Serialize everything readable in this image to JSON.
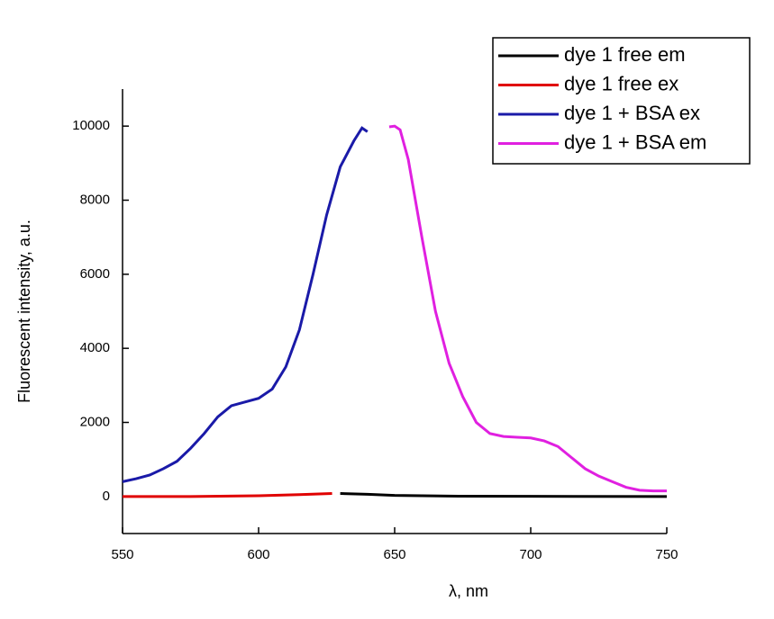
{
  "chart_data": {
    "type": "line",
    "x_label": "λ, nm",
    "y_label": "Fluorescent intensity, a.u.",
    "xlim": [
      550,
      750
    ],
    "xticks": [
      550,
      600,
      650,
      700,
      750
    ],
    "ylim": [
      -1000,
      11000
    ],
    "yticks": [
      0,
      2000,
      4000,
      6000,
      8000,
      10000
    ],
    "series": [
      {
        "name": "dye 1 free em",
        "color": "#000000",
        "x": [
          630,
          640,
          650,
          670,
          700,
          750
        ],
        "values": [
          80,
          60,
          30,
          10,
          5,
          0
        ]
      },
      {
        "name": "dye 1 free ex",
        "color": "#e00000",
        "x": [
          550,
          575,
          600,
          615,
          627
        ],
        "values": [
          0,
          0,
          20,
          50,
          80
        ]
      },
      {
        "name": "dye 1 + BSA ex",
        "color": "#1a1aa8",
        "x": [
          550,
          555,
          560,
          565,
          570,
          575,
          580,
          585,
          590,
          595,
          600,
          605,
          610,
          615,
          620,
          625,
          630,
          635,
          638,
          640
        ],
        "values": [
          400,
          480,
          580,
          750,
          950,
          1300,
          1700,
          2150,
          2450,
          2550,
          2650,
          2900,
          3500,
          4500,
          6000,
          7600,
          8900,
          9600,
          9950,
          9850
        ]
      },
      {
        "name": "dye 1 + BSA em",
        "color": "#e020e0",
        "x": [
          648,
          650,
          652,
          655,
          660,
          665,
          670,
          675,
          680,
          685,
          690,
          695,
          700,
          705,
          710,
          715,
          720,
          725,
          730,
          735,
          740,
          745,
          750
        ],
        "values": [
          9980,
          10000,
          9900,
          9100,
          7000,
          5000,
          3600,
          2700,
          2000,
          1700,
          1620,
          1600,
          1580,
          1500,
          1350,
          1050,
          750,
          550,
          400,
          250,
          170,
          150,
          150
        ]
      }
    ]
  }
}
